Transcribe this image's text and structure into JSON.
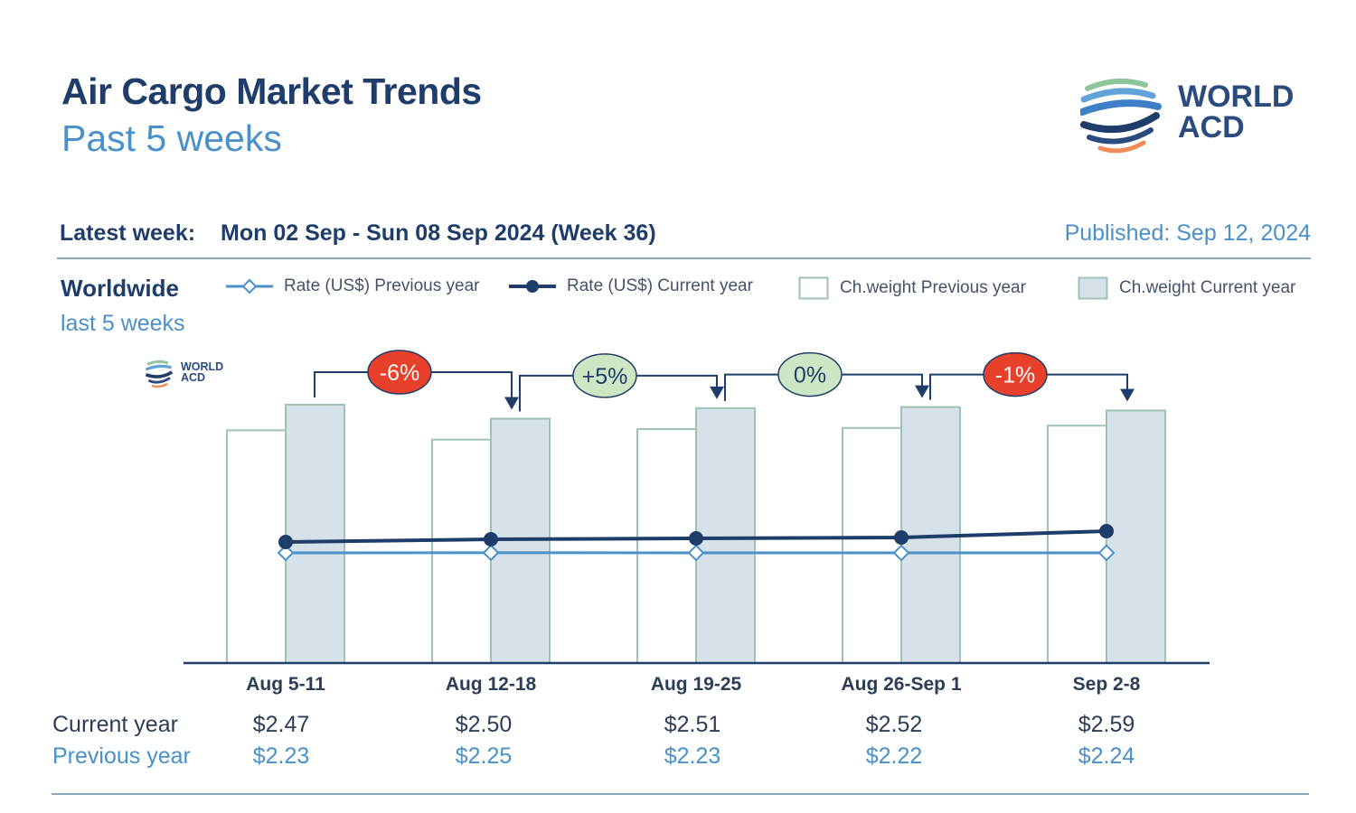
{
  "header": {
    "title": "Air Cargo Market Trends",
    "subtitle": "Past 5 weeks",
    "logo_text": [
      "WORLD",
      "ACD"
    ]
  },
  "info": {
    "latest_label": "Latest week:",
    "latest_value": "Mon 02 Sep - Sun 08 Sep 2024 (Week 36)",
    "published": "Published: Sep 12, 2024"
  },
  "region": {
    "name": "Worldwide",
    "period": "last 5 weeks"
  },
  "legend": [
    {
      "label": "Rate (US$) Previous year",
      "icon": "line-diamond-icon"
    },
    {
      "label": "Rate (US$) Current year",
      "icon": "line-dot-icon"
    },
    {
      "label": "Ch.weight Previous year",
      "icon": "white-box-icon"
    },
    {
      "label": "Ch.weight Current year",
      "icon": "blue-box-icon"
    }
  ],
  "colors": {
    "title": "#1f3d6b",
    "accent": "#4a90c9",
    "current_line": "#1f3d6b",
    "previous_line": "#4a90c9",
    "bar_prev_fill": "#ffffff",
    "bar_cur_fill": "#d6e1ea",
    "bar_stroke": "#9ec2b3",
    "badge_neg": "#e8402a",
    "badge_pos": "#cfe6c4"
  },
  "table": {
    "current_label": "Current year",
    "previous_label": "Previous year"
  },
  "chart_data": {
    "type": "bar",
    "categories": [
      "Aug 5-11",
      "Aug 12-18",
      "Aug 19-25",
      "Aug 26-Sep 1",
      "Sep 2-8"
    ],
    "chargeable_weight_index": {
      "previous_year": [
        100,
        96,
        100.5,
        101,
        102
      ],
      "current_year": [
        111,
        105,
        109.5,
        110,
        108.5
      ]
    },
    "series": [
      {
        "name": "Rate (US$) Current year",
        "values": [
          2.47,
          2.5,
          2.51,
          2.52,
          2.59
        ],
        "labels": [
          "$2.47",
          "$2.50",
          "$2.51",
          "$2.52",
          "$2.59"
        ]
      },
      {
        "name": "Rate (US$) Previous year",
        "values": [
          2.23,
          2.25,
          2.23,
          2.22,
          2.24
        ],
        "labels": [
          "$2.23",
          "$2.25",
          "$2.23",
          "$2.22",
          "$2.24"
        ]
      }
    ],
    "week_changes": [
      {
        "label": "-6%",
        "sign": "neg"
      },
      {
        "label": "+5%",
        "sign": "pos"
      },
      {
        "label": "0%",
        "sign": "pos"
      },
      {
        "label": "-1%",
        "sign": "neg"
      }
    ],
    "grid": false
  }
}
